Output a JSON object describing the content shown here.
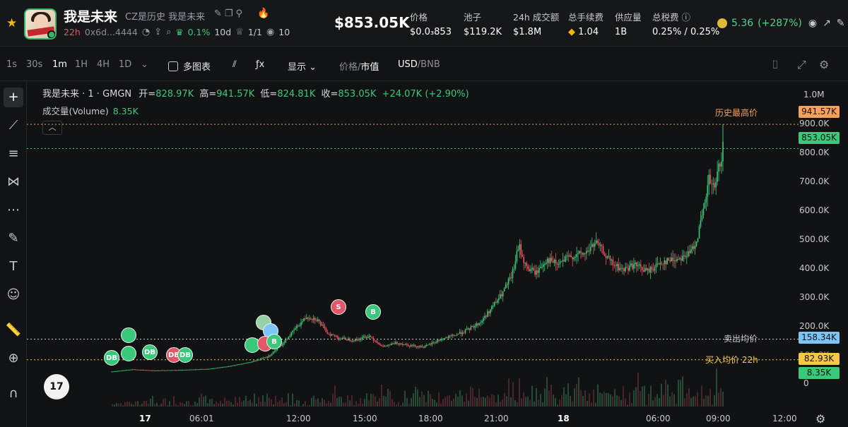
{
  "header": {
    "token_name": "我是未来",
    "token_desc": "CZ是历史 我是未来",
    "age": "22h",
    "address": "0x6d...4444",
    "holder_pct": "0.1%",
    "holder_age": "10d",
    "ratio": "1/1",
    "views": "10",
    "market_cap": "$853.05K",
    "stats": [
      {
        "label": "价格",
        "value": "$0.0₃853"
      },
      {
        "label": "池子",
        "value": "$119.2K"
      },
      {
        "label": "24h 成交额",
        "value": "$1.8M"
      },
      {
        "label": "总手续费",
        "value": "1.04"
      },
      {
        "label": "供应量",
        "value": "1B"
      },
      {
        "label": "总税费",
        "value": "0.25% / 0.25%"
      }
    ],
    "gas_value": "5.36",
    "gas_change": "(+287%)"
  },
  "toolbar": {
    "intervals": [
      "1s",
      "30s",
      "1m",
      "1H",
      "4H",
      "1D"
    ],
    "active_interval": "1m",
    "multi_chart": "多图表",
    "display": "显示",
    "price_label": "价格",
    "mcap_label": "市值",
    "usd": "USD",
    "bnb": "BNB"
  },
  "chart_legend": {
    "symbol": "我是未来 · 1 · GMGN",
    "open_k": "开=",
    "open": "828.97K",
    "high_k": "高=",
    "high": "941.57K",
    "low_k": "低=",
    "low": "824.81K",
    "close_k": "收=",
    "close": "853.05K",
    "change": "+24.07K (+2.90%)",
    "volume_label": "成交量(Volume)",
    "volume": "8.35K"
  },
  "chart_lines": {
    "ath_label": "历史最高价",
    "sell_avg_label": "卖出均价",
    "buy_avg_label": "买入均价 22h"
  },
  "chart_data": {
    "type": "candlestick",
    "y_axis_labels": [
      "1.0M",
      "900.0K",
      "800.0K",
      "700.0K",
      "600.0K",
      "500.0K",
      "400.0K",
      "300.0K",
      "200.0K",
      "100.0K",
      "0"
    ],
    "y_tags": {
      "ath": "941.57K",
      "last": "853.05K",
      "sell_avg": "158.34K",
      "buy_avg": "82.93K",
      "volume": "8.35K"
    },
    "x_axis_labels": [
      "17",
      "06:01",
      "12:00",
      "15:00",
      "18:00",
      "21:00",
      "18",
      "06:00",
      "09:00",
      "12:00"
    ],
    "ylim": [
      0,
      1050
    ],
    "colors": {
      "up": "#3ac97a",
      "down": "#f0515e",
      "ath": "#f5a05b",
      "sell": "#7fc4f7",
      "buy": "#f5c84a"
    },
    "price_points_k": [
      [
        0,
        40
      ],
      [
        30,
        48
      ],
      [
        60,
        44
      ],
      [
        100,
        46
      ],
      [
        140,
        50
      ],
      [
        170,
        60
      ],
      [
        200,
        75
      ],
      [
        225,
        95
      ],
      [
        245,
        140
      ],
      [
        265,
        200
      ],
      [
        280,
        240
      ],
      [
        295,
        230
      ],
      [
        310,
        180
      ],
      [
        330,
        160
      ],
      [
        350,
        155
      ],
      [
        370,
        170
      ],
      [
        390,
        130
      ],
      [
        410,
        145
      ],
      [
        430,
        135
      ],
      [
        450,
        130
      ],
      [
        470,
        155
      ],
      [
        490,
        170
      ],
      [
        510,
        190
      ],
      [
        530,
        220
      ],
      [
        545,
        270
      ],
      [
        560,
        320
      ],
      [
        575,
        390
      ],
      [
        585,
        500
      ],
      [
        595,
        420
      ],
      [
        610,
        400
      ],
      [
        625,
        450
      ],
      [
        640,
        430
      ],
      [
        660,
        460
      ],
      [
        680,
        470
      ],
      [
        695,
        510
      ],
      [
        705,
        480
      ],
      [
        720,
        430
      ],
      [
        735,
        410
      ],
      [
        750,
        430
      ],
      [
        770,
        405
      ],
      [
        790,
        440
      ],
      [
        810,
        450
      ],
      [
        830,
        470
      ],
      [
        840,
        520
      ],
      [
        850,
        620
      ],
      [
        858,
        740
      ],
      [
        866,
        700
      ],
      [
        872,
        780
      ],
      [
        878,
        853
      ]
    ],
    "trade_markers": [
      {
        "label": "DB"
      },
      {
        "label": "DB"
      },
      {
        "label": "DB"
      },
      {
        "label": "DB"
      },
      {
        "label": "B"
      },
      {
        "label": "S"
      },
      {
        "label": "B"
      }
    ]
  },
  "tradingview_logo": "17"
}
